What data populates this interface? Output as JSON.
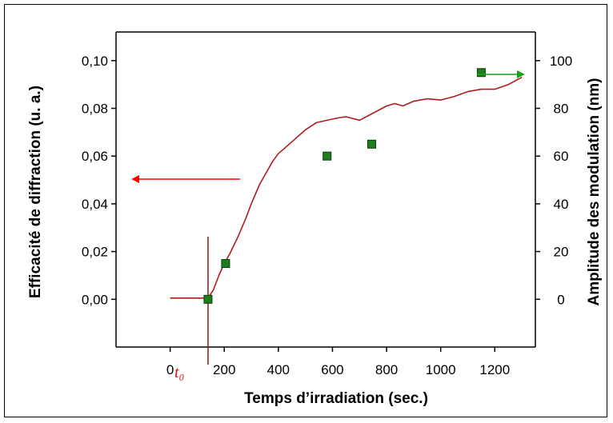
{
  "chart_data": {
    "type": "line",
    "xlabel": "Temps d’irradiation (sec.)",
    "ylabel_left": "Efficacité de diffraction (u. a.)",
    "ylabel_right": "Amplitude des modulation (nm)",
    "xlim": [
      -200,
      1350
    ],
    "ylim_left": [
      -0.02,
      0.112
    ],
    "ylim_right": [
      -20,
      112
    ],
    "x_ticks": [
      "0",
      "200",
      "400",
      "600",
      "800",
      "1000",
      "1200"
    ],
    "x_tick_values": [
      0,
      200,
      400,
      600,
      800,
      1000,
      1200
    ],
    "y_ticks_left": [
      "0,00",
      "0,02",
      "0,04",
      "0,06",
      "0,08",
      "0,10"
    ],
    "y_tick_values_left": [
      0,
      0.02,
      0.04,
      0.06,
      0.08,
      0.1
    ],
    "y_ticks_right": [
      "0",
      "20",
      "40",
      "60",
      "80",
      "100"
    ],
    "y_tick_values_right": [
      0,
      20,
      40,
      60,
      80,
      100
    ],
    "annotation_label": "t₀",
    "annotation_x": 140,
    "series": [
      {
        "axis": "left",
        "color": "#b01c1c",
        "x": [
          0,
          50,
          100,
          130,
          140,
          160,
          180,
          200,
          220,
          250,
          280,
          300,
          330,
          360,
          380,
          400,
          430,
          460,
          500,
          540,
          580,
          620,
          650,
          700,
          750,
          800,
          830,
          860,
          900,
          950,
          1000,
          1050,
          1100,
          1150,
          1200,
          1250,
          1300
        ],
        "y": [
          0.0005,
          0.0005,
          0.0005,
          0.0005,
          0.0005,
          0.004,
          0.01,
          0.015,
          0.019,
          0.026,
          0.034,
          0.04,
          0.048,
          0.054,
          0.058,
          0.061,
          0.064,
          0.067,
          0.071,
          0.074,
          0.075,
          0.076,
          0.0765,
          0.075,
          0.078,
          0.081,
          0.082,
          0.081,
          0.083,
          0.084,
          0.0835,
          0.085,
          0.087,
          0.088,
          0.088,
          0.09,
          0.093
        ]
      },
      {
        "axis": "right",
        "type": "scatter",
        "color": "#1e7d1e",
        "x": [
          140,
          205,
          580,
          745,
          1150
        ],
        "y": [
          0,
          15,
          60,
          65,
          95
        ]
      }
    ]
  }
}
